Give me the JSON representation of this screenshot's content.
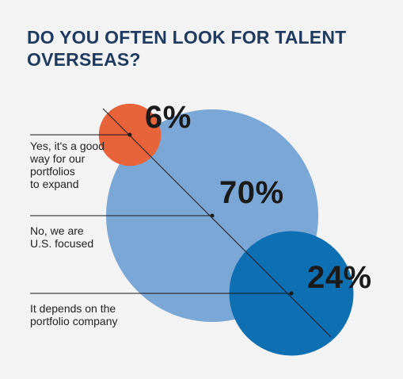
{
  "title": "DO YOU OFTEN LOOK FOR TALENT OVERSEAS?",
  "chart_data": {
    "type": "bubble",
    "title": "DO YOU OFTEN LOOK FOR TALENT OVERSEAS?",
    "categories": [
      "Yes, it's a good\nway for our\nportfolios\nto expand",
      "No, we are\nU.S. focused",
      "It depends on the\nportfolio company"
    ],
    "values": [
      6,
      70,
      24
    ],
    "value_labels": [
      "6%",
      "70%",
      "24%"
    ],
    "colors": [
      "#e8623a",
      "#7ba7d7",
      "#0e6fb3"
    ]
  }
}
